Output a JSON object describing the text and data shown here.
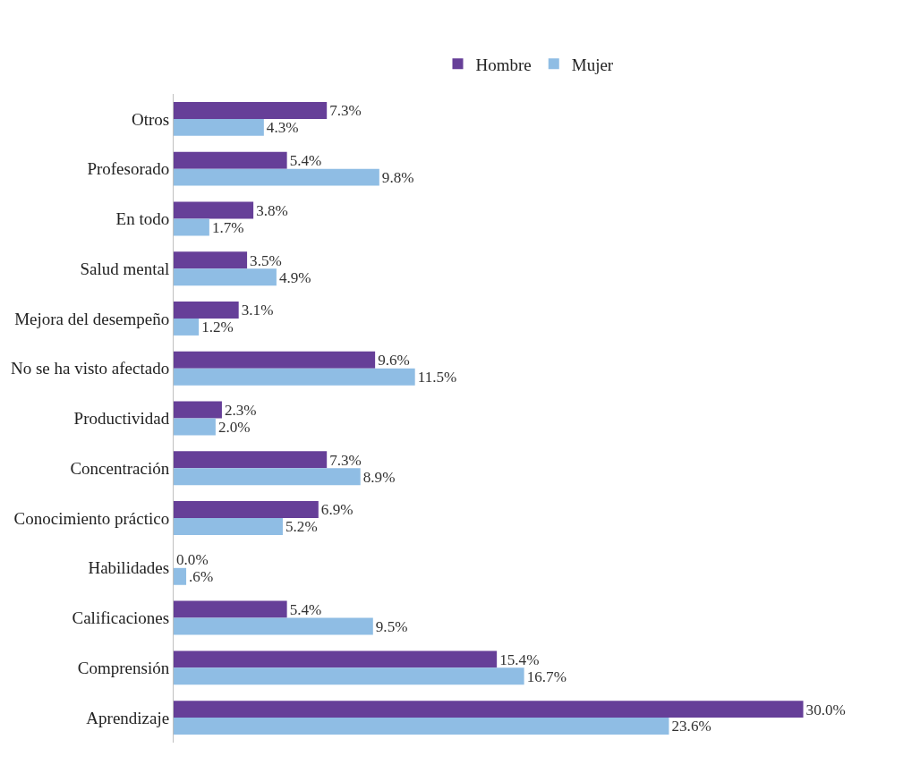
{
  "chart_data": {
    "type": "bar",
    "orientation": "horizontal",
    "legend": "top",
    "categories": [
      "Otros",
      "Profesorado",
      "En todo",
      "Salud mental",
      "Mejora del desempeño",
      "No se ha visto afectado",
      "Productividad",
      "Concentración",
      "Conocimiento práctico",
      "Habilidades",
      "Calificaciones",
      "Comprensión",
      "Aprendizaje"
    ],
    "series": [
      {
        "name": "Hombre",
        "color": "#663f98",
        "values": [
          7.3,
          5.4,
          3.8,
          3.5,
          3.1,
          9.6,
          2.3,
          7.3,
          6.9,
          0.0,
          5.4,
          15.4,
          30.0
        ],
        "value_labels": [
          "7.3%",
          "5.4%",
          "3.8%",
          "3.5%",
          "3.1%",
          "9.6%",
          "2.3%",
          "7.3%",
          "6.9%",
          "0.0%",
          "5.4%",
          "15.4%",
          "30.0%"
        ]
      },
      {
        "name": "Mujer",
        "color": "#8fbde4",
        "values": [
          4.3,
          9.8,
          1.7,
          4.9,
          1.2,
          11.5,
          2.0,
          8.9,
          5.2,
          0.6,
          9.5,
          16.7,
          23.6
        ],
        "value_labels": [
          "4.3%",
          "9.8%",
          "1.7%",
          "4.9%",
          "1.2%",
          "11.5%",
          "2.0%",
          "8.9%",
          "5.2%",
          ".6%",
          "9.5%",
          "16.7%",
          "23.6%"
        ]
      }
    ]
  }
}
